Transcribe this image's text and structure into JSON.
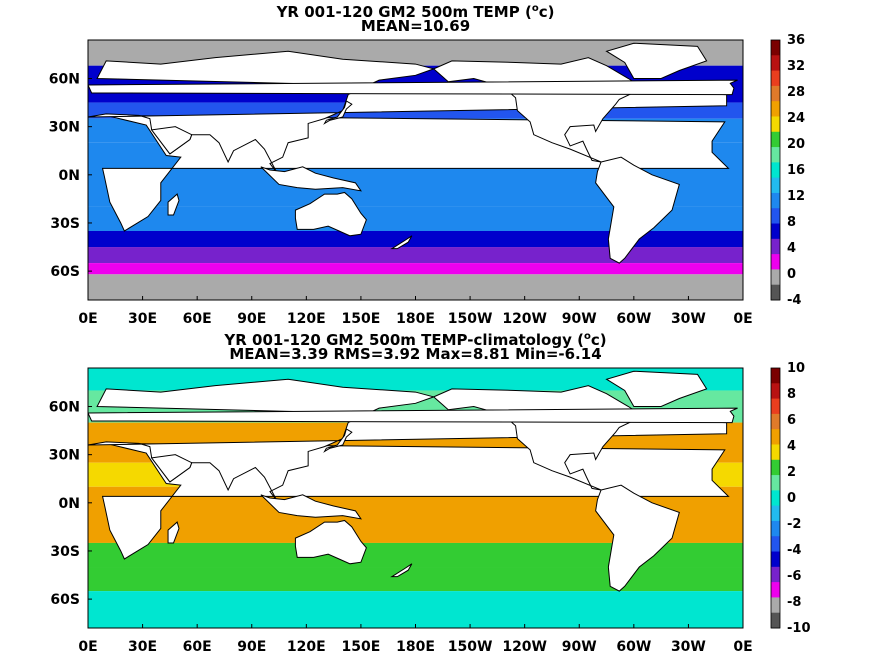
{
  "charts": [
    {
      "title_line1": "YR 001-120 GM2 500m TEMP (",
      "title_unit": "c)",
      "title_line2": "MEAN=10.69",
      "colorbar_ticks": [
        "36",
        "32",
        "28",
        "24",
        "20",
        "16",
        "12",
        "8",
        "4",
        "0",
        "-4"
      ]
    },
    {
      "title_line1": "YR 001-120 GM2 500m TEMP-climatology (",
      "title_unit": "c)",
      "title_line2": "MEAN=3.39   RMS=3.92   Max=8.81   Min=-6.14",
      "colorbar_ticks": [
        "10",
        "8",
        "6",
        "4",
        "2",
        "0",
        "-2",
        "-4",
        "-6",
        "-8",
        "-10"
      ]
    }
  ],
  "degree_symbol": "o",
  "chart_data": [
    {
      "type": "heatmap",
      "title": "YR 001-120 GM2 500m TEMP (oc)",
      "statistics": {
        "MEAN": 10.69
      },
      "x_tick_labels": [
        "0E",
        "30E",
        "60E",
        "90E",
        "120E",
        "150E",
        "180E",
        "150W",
        "120W",
        "90W",
        "60W",
        "30W",
        "0E"
      ],
      "y_tick_labels": [
        "60N",
        "30N",
        "0N",
        "30S",
        "60S"
      ],
      "color_range": [
        -4,
        36
      ],
      "colorbar_ticks": [
        36,
        32,
        28,
        24,
        20,
        16,
        12,
        8,
        4,
        0,
        -4
      ],
      "colorbar_colors": [
        "#7a0000",
        "#b81212",
        "#ea3e1e",
        "#e07a2a",
        "#f0a000",
        "#f5d900",
        "#33cc33",
        "#66e8a0",
        "#00e6d0",
        "#22bbee",
        "#1e88ee",
        "#2255ee",
        "#0000cc",
        "#7722cc",
        "#ee00ee",
        "#aaaaaa",
        "#555555"
      ],
      "field_bands": [
        {
          "lat_top": 90,
          "lat_bottom": 68,
          "value": -1
        },
        {
          "lat_top": 68,
          "lat_bottom": 45,
          "value": 5
        },
        {
          "lat_top": 45,
          "lat_bottom": 35,
          "value": 8
        },
        {
          "lat_top": 35,
          "lat_bottom": 20,
          "value": 10
        },
        {
          "lat_top": 20,
          "lat_bottom": -20,
          "value": 11
        },
        {
          "lat_top": -20,
          "lat_bottom": -35,
          "value": 10
        },
        {
          "lat_top": -35,
          "lat_bottom": -45,
          "value": 7
        },
        {
          "lat_top": -45,
          "lat_bottom": -55,
          "value": 4
        },
        {
          "lat_top": -55,
          "lat_bottom": -62,
          "value": 2
        },
        {
          "lat_top": -62,
          "lat_bottom": -90,
          "value": -1
        }
      ]
    },
    {
      "type": "heatmap",
      "title": "YR 001-120 GM2 500m TEMP-climatology (oc)",
      "statistics": {
        "MEAN": 3.39,
        "RMS": 3.92,
        "Max": 8.81,
        "Min": -6.14
      },
      "x_tick_labels": [
        "0E",
        "30E",
        "60E",
        "90E",
        "120E",
        "150E",
        "180E",
        "150W",
        "120W",
        "90W",
        "60W",
        "30W",
        "0E"
      ],
      "y_tick_labels": [
        "60N",
        "30N",
        "0N",
        "30S",
        "60S"
      ],
      "color_range": [
        -10,
        10
      ],
      "colorbar_ticks": [
        10,
        8,
        6,
        4,
        2,
        0,
        -2,
        -4,
        -6,
        -8,
        -10
      ],
      "colorbar_colors": [
        "#7a0000",
        "#b81212",
        "#ea3e1e",
        "#e07a2a",
        "#f0a000",
        "#f5d900",
        "#33cc33",
        "#66e8a0",
        "#00e6d0",
        "#22bbee",
        "#1e88ee",
        "#2255ee",
        "#0000cc",
        "#7722cc",
        "#ee00ee",
        "#aaaaaa",
        "#555555"
      ],
      "field_bands": [
        {
          "lat_top": 90,
          "lat_bottom": 70,
          "value": 0
        },
        {
          "lat_top": 70,
          "lat_bottom": 50,
          "value": 1
        },
        {
          "lat_top": 50,
          "lat_bottom": 25,
          "value": 5
        },
        {
          "lat_top": 25,
          "lat_bottom": 10,
          "value": 4
        },
        {
          "lat_top": 10,
          "lat_bottom": -25,
          "value": 5
        },
        {
          "lat_top": -25,
          "lat_bottom": -40,
          "value": 3
        },
        {
          "lat_top": -40,
          "lat_bottom": -55,
          "value": 2
        },
        {
          "lat_top": -55,
          "lat_bottom": -90,
          "value": 0
        }
      ]
    }
  ]
}
